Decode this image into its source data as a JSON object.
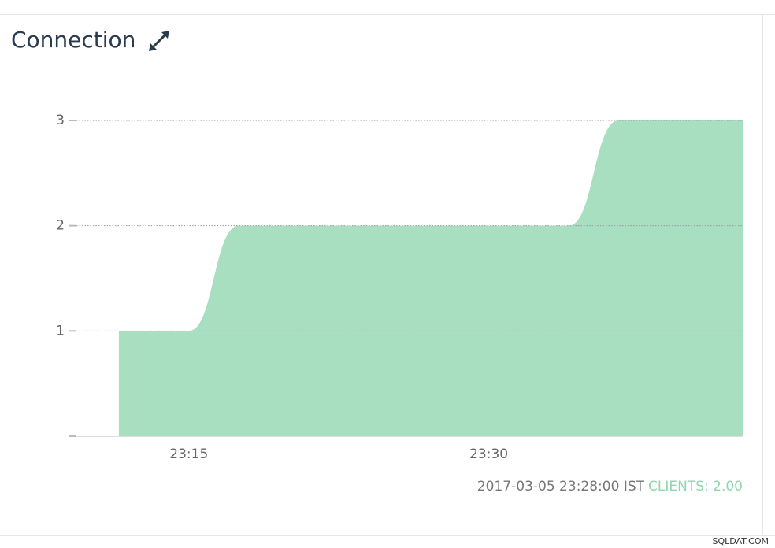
{
  "chart_data": {
    "type": "area",
    "title": "Connection",
    "x": [
      1391.5,
      1393,
      1395,
      1397.5,
      1399.5,
      1412,
      1414,
      1416.5,
      1418.5,
      1422.7
    ],
    "values": [
      1,
      1,
      1,
      2,
      2,
      2,
      2,
      3,
      3,
      3
    ],
    "color": "#a8dfc0",
    "xlim": [
      1389.1,
      1422.7
    ],
    "xticks": [
      {
        "value": 1395,
        "label": "23:15"
      },
      {
        "value": 1410,
        "label": "23:30"
      }
    ],
    "ylim": [
      0,
      3
    ],
    "yticks": [
      1,
      2,
      3
    ],
    "grid": true,
    "footer": {
      "timestamp": "2017-03-05 23:28:00 IST",
      "status": "CLIENTS: 2.00"
    },
    "watermark": "SQLDAT.COM"
  }
}
